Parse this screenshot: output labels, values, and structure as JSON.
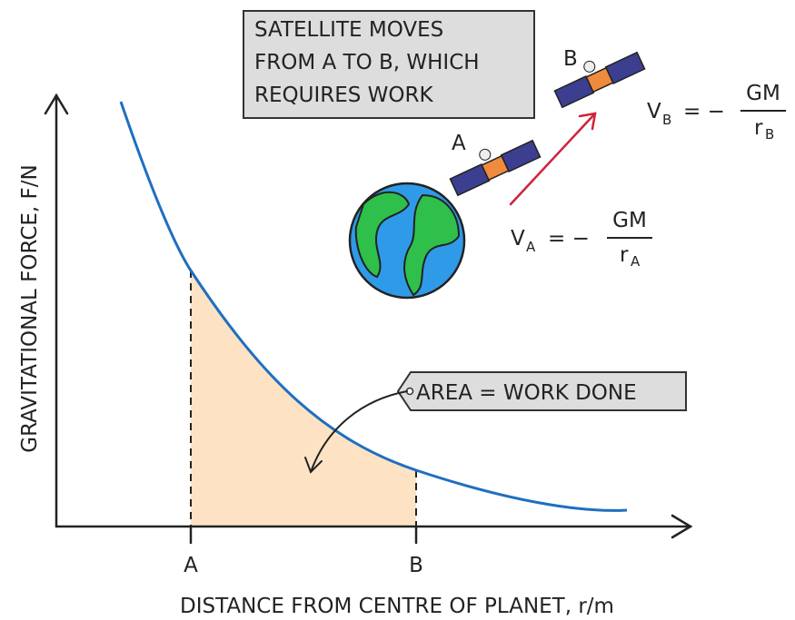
{
  "title_box": {
    "lines": [
      "SATELLITE MOVES",
      "FROM A TO B, WHICH",
      "REQUIRES WORK"
    ]
  },
  "satellites": {
    "a_label": "A",
    "b_label": "B"
  },
  "formula_b": {
    "lhs": "V",
    "lhs_sub": "B",
    "sign": "= −",
    "numerator": "GM",
    "denominator": "r",
    "denominator_sub": "B"
  },
  "formula_a": {
    "lhs": "V",
    "lhs_sub": "A",
    "sign": "= −",
    "numerator": "GM",
    "denominator": "r",
    "denominator_sub": "A"
  },
  "area_tag": "AREA = WORK DONE",
  "axes": {
    "y_label": "GRAVITATIONAL FORCE, F/N",
    "x_label": "DISTANCE FROM CENTRE OF PLANET, r/m",
    "x_ticks": [
      "A",
      "B"
    ]
  }
}
